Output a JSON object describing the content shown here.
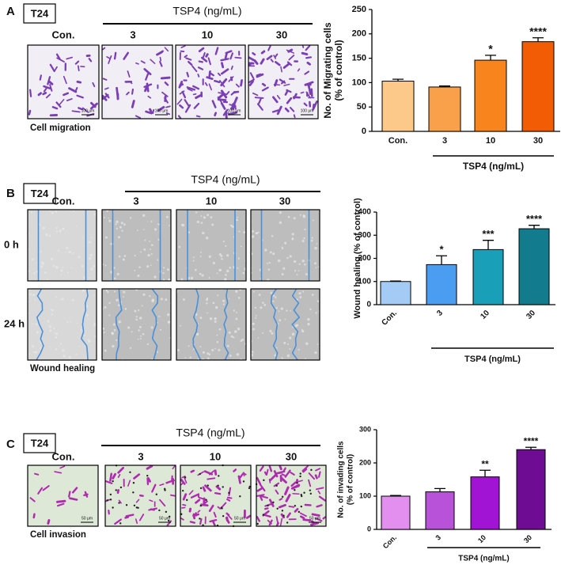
{
  "panels": [
    {
      "letter": "A",
      "cell_line": "T24",
      "group_label": "TSP4 (ng/mL)",
      "image_labels": [
        "Con.",
        "3",
        "10",
        "30"
      ],
      "scale_bar": "100 μm",
      "caption": "Cell migration"
    },
    {
      "letter": "B",
      "cell_line": "T24",
      "group_label": "TSP4 (ng/mL)",
      "image_labels": [
        "Con.",
        "3",
        "10",
        "30"
      ],
      "row_labels": [
        "0 h",
        "24 h"
      ],
      "caption": "Wound healing"
    },
    {
      "letter": "C",
      "cell_line": "T24",
      "group_label": "TSP4 (ng/mL)",
      "image_labels": [
        "Con.",
        "3",
        "10",
        "30"
      ],
      "scale_bar": "50 μm",
      "caption": "Cell invasion"
    }
  ],
  "chart_data": [
    {
      "type": "bar",
      "y_label": [
        "No. of Migrating cells",
        "(% of control)"
      ],
      "categories": [
        "Con.",
        "3",
        "10",
        "30"
      ],
      "values": [
        103,
        91,
        146,
        184
      ],
      "errors": [
        4,
        2,
        10,
        8
      ],
      "annotations": [
        null,
        null,
        "*",
        "****"
      ],
      "colors": [
        "#fcc98a",
        "#f9a04a",
        "#f7841d",
        "#f25c05"
      ],
      "group_label": "TSP4 (ng/mL)",
      "ylim": [
        0,
        250
      ],
      "yticks": [
        0,
        50,
        100,
        150,
        200,
        250
      ]
    },
    {
      "type": "bar",
      "y_label": [
        "Wound healing (% of control)"
      ],
      "categories": [
        "Con.",
        "3",
        "10",
        "30"
      ],
      "values": [
        100,
        173,
        238,
        328
      ],
      "errors": [
        2,
        38,
        40,
        15
      ],
      "annotations": [
        null,
        "*",
        "***",
        "****"
      ],
      "colors": [
        "#a3cbf5",
        "#4a9df0",
        "#1a9fb8",
        "#137b8e"
      ],
      "group_label": "TSP4 (ng/mL)",
      "ylim": [
        0,
        400
      ],
      "yticks": [
        0,
        100,
        200,
        300,
        400
      ]
    },
    {
      "type": "bar",
      "y_label": [
        "No. of invading cells",
        "(% of control)"
      ],
      "categories": [
        "Con.",
        "3",
        "10",
        "30"
      ],
      "values": [
        100,
        113,
        158,
        240
      ],
      "errors": [
        2,
        10,
        20,
        7
      ],
      "annotations": [
        null,
        null,
        "**",
        "****"
      ],
      "colors": [
        "#e38ff0",
        "#b852d8",
        "#a214d4",
        "#6f0c94"
      ],
      "group_label": "TSP4 (ng/mL)",
      "ylim": [
        0,
        300
      ],
      "yticks": [
        0,
        100,
        200,
        300
      ]
    }
  ]
}
